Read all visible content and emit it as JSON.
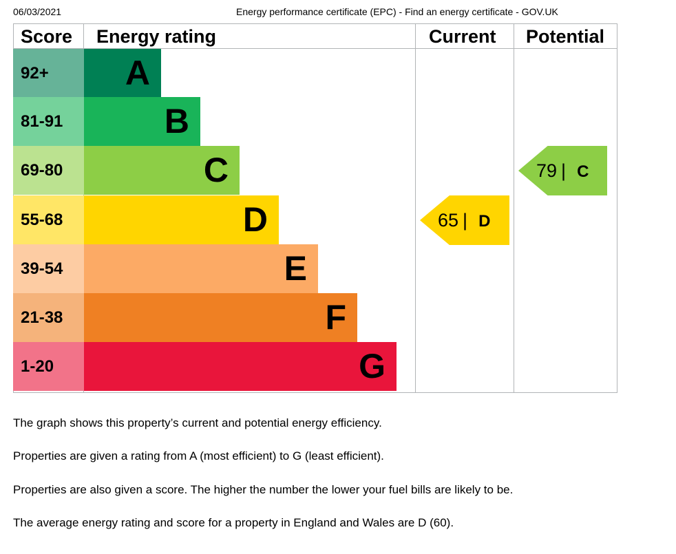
{
  "header": {
    "date": "06/03/2021",
    "title": "Energy performance certificate (EPC) - Find an energy certificate - GOV.UK"
  },
  "columns": {
    "score": "Score",
    "rating": "Energy rating",
    "current": "Current",
    "potential": "Potential"
  },
  "bands": [
    {
      "score": "92+",
      "letter": "A",
      "bar_color": "#008054",
      "score_color": "#66b398"
    },
    {
      "score": "81-91",
      "letter": "B",
      "bar_color": "#19b459",
      "score_color": "#75d29b"
    },
    {
      "score": "69-80",
      "letter": "C",
      "bar_color": "#8dce46",
      "score_color": "#bbe290"
    },
    {
      "score": "55-68",
      "letter": "D",
      "bar_color": "#ffd500",
      "score_color": "#ffe666"
    },
    {
      "score": "39-54",
      "letter": "E",
      "bar_color": "#fcaa65",
      "score_color": "#fdcca3"
    },
    {
      "score": "21-38",
      "letter": "F",
      "bar_color": "#ef8023",
      "score_color": "#f5b37b"
    },
    {
      "score": "1-20",
      "letter": "G",
      "bar_color": "#e9153b",
      "score_color": "#f27389"
    }
  ],
  "current": {
    "score": "65",
    "separator": "|",
    "letter": "D",
    "color": "#ffd500"
  },
  "potential": {
    "score": "79",
    "separator": "|",
    "letter": "C",
    "color": "#8dce46"
  },
  "paragraphs": [
    "The graph shows this property’s current and potential energy efficiency.",
    "Properties are given a rating from A (most efficient) to G (least efficient).",
    "Properties are also given a score. The higher the number the lower your fuel bills are likely to be.",
    "The average energy rating and score for a property in England and Wales are D (60)."
  ]
}
